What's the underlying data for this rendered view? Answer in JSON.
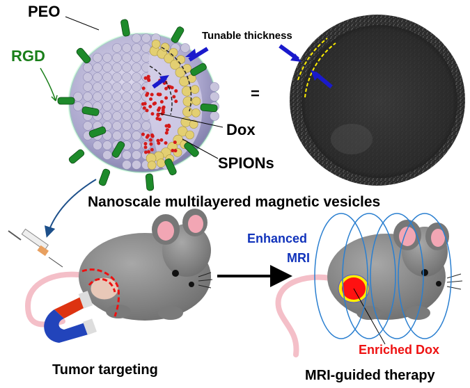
{
  "labels": {
    "peo": "PEO",
    "rgd": "RGD",
    "tunable": "Tunable thickness",
    "equals": "=",
    "dox": "Dox",
    "spions": "SPIONs",
    "title": "Nanoscale multilayered magnetic vesicles",
    "enhanced": "Enhanced",
    "mri": "MRI",
    "enriched_dox": "Enriched Dox",
    "tumor_targeting": "Tumor targeting",
    "mri_therapy": "MRI-guided therapy"
  },
  "colors": {
    "rgd": "#1a7f1a",
    "mri_text": "#1133bb",
    "enriched_dox": "#ee1111",
    "arrow_blue": "#1a1acc",
    "coil": "#2a7fd0",
    "mouse": "#8a8a8a",
    "spion": "#e0cc70",
    "vesicle": "#b8b4d4"
  }
}
